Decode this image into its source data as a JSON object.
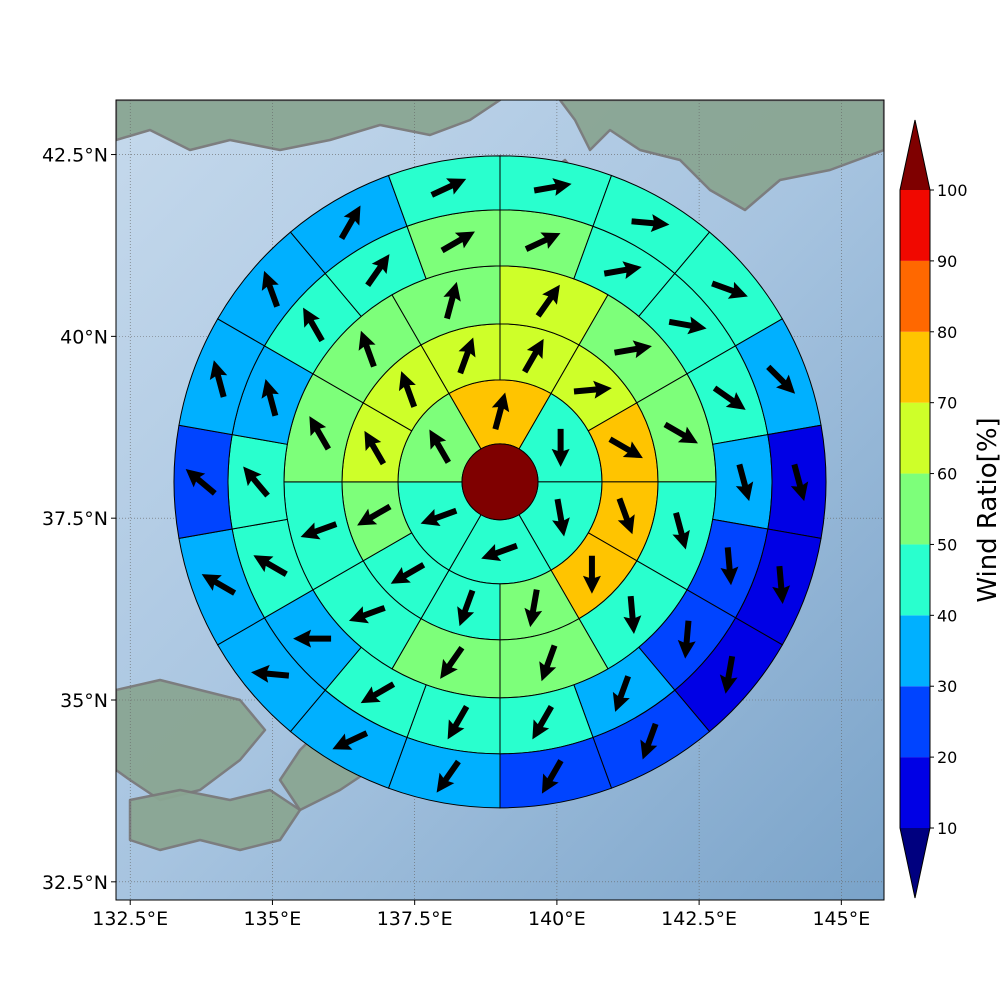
{
  "chart_data": {
    "type": "polar-sector-map",
    "map": {
      "lon_range": [
        132.25,
        145.75
      ],
      "lat_range": [
        32.25,
        43.25
      ],
      "center": {
        "lon": 139.0,
        "lat": 38.0
      },
      "x_ticks": [
        {
          "value": 132.5,
          "label": "132.5°E"
        },
        {
          "value": 135.0,
          "label": "135°E"
        },
        {
          "value": 137.5,
          "label": "137.5°E"
        },
        {
          "value": 140.0,
          "label": "140°E"
        },
        {
          "value": 142.5,
          "label": "142.5°E"
        },
        {
          "value": 145.0,
          "label": "145°E"
        }
      ],
      "y_ticks": [
        {
          "value": 32.5,
          "label": "32.5°N"
        },
        {
          "value": 35.0,
          "label": "35°N"
        },
        {
          "value": 37.5,
          "label": "37.5°N"
        },
        {
          "value": 40.0,
          "label": "40°N"
        },
        {
          "value": 42.5,
          "label": "42.5°N"
        }
      ],
      "grid": true,
      "grid_style": "dotted",
      "ocean_color": "#9fbfdc",
      "land_color": "#8aa693",
      "coastline_color": "#7a7a7a"
    },
    "rings": [
      {
        "ring": 1,
        "center_value": 100
      },
      {
        "ring": 2,
        "sectors": [
          {
            "dir": 60,
            "value": 45,
            "arrow": 180
          },
          {
            "dir": 120,
            "value": 40,
            "arrow": 170
          },
          {
            "dir": 180,
            "value": 45,
            "arrow": 250
          },
          {
            "dir": 240,
            "value": 45,
            "arrow": 250
          },
          {
            "dir": 300,
            "value": 55,
            "arrow": 330
          },
          {
            "dir": 0,
            "value": 75,
            "arrow": 15
          }
        ]
      },
      {
        "ring": 3,
        "sectors": [
          {
            "dir": 15,
            "value": 65,
            "arrow": 30
          },
          {
            "dir": 45,
            "value": 65,
            "arrow": 85
          },
          {
            "dir": 75,
            "value": 75,
            "arrow": 120
          },
          {
            "dir": 105,
            "value": 75,
            "arrow": 160
          },
          {
            "dir": 135,
            "value": 75,
            "arrow": 180
          },
          {
            "dir": 165,
            "value": 55,
            "arrow": 190
          },
          {
            "dir": 195,
            "value": 45,
            "arrow": 200
          },
          {
            "dir": 225,
            "value": 45,
            "arrow": 240
          },
          {
            "dir": 255,
            "value": 55,
            "arrow": 240
          },
          {
            "dir": 285,
            "value": 65,
            "arrow": 330
          },
          {
            "dir": 315,
            "value": 65,
            "arrow": 340
          },
          {
            "dir": 345,
            "value": 65,
            "arrow": 20
          }
        ]
      },
      {
        "ring": 4,
        "sectors": [
          {
            "dir": 15,
            "value": 65,
            "arrow": 35
          },
          {
            "dir": 45,
            "value": 55,
            "arrow": 80
          },
          {
            "dir": 75,
            "value": 55,
            "arrow": 120
          },
          {
            "dir": 105,
            "value": 45,
            "arrow": 165
          },
          {
            "dir": 135,
            "value": 45,
            "arrow": 175
          },
          {
            "dir": 165,
            "value": 55,
            "arrow": 200
          },
          {
            "dir": 195,
            "value": 55,
            "arrow": 215
          },
          {
            "dir": 225,
            "value": 45,
            "arrow": 250
          },
          {
            "dir": 255,
            "value": 45,
            "arrow": 250
          },
          {
            "dir": 285,
            "value": 55,
            "arrow": 330
          },
          {
            "dir": 315,
            "value": 55,
            "arrow": 340
          },
          {
            "dir": 345,
            "value": 55,
            "arrow": 15
          }
        ]
      },
      {
        "ring": 5,
        "sectors": [
          {
            "dir": 10,
            "value": 55,
            "arrow": 65
          },
          {
            "dir": 30,
            "value": 45,
            "arrow": 80
          },
          {
            "dir": 50,
            "value": 45,
            "arrow": 100
          },
          {
            "dir": 70,
            "value": 45,
            "arrow": 125
          },
          {
            "dir": 90,
            "value": 35,
            "arrow": 165
          },
          {
            "dir": 110,
            "value": 25,
            "arrow": 175
          },
          {
            "dir": 130,
            "value": 25,
            "arrow": 185
          },
          {
            "dir": 150,
            "value": 35,
            "arrow": 200
          },
          {
            "dir": 170,
            "value": 45,
            "arrow": 210
          },
          {
            "dir": 190,
            "value": 45,
            "arrow": 210
          },
          {
            "dir": 210,
            "value": 45,
            "arrow": 240
          },
          {
            "dir": 230,
            "value": 35,
            "arrow": 270
          },
          {
            "dir": 250,
            "value": 45,
            "arrow": 300
          },
          {
            "dir": 270,
            "value": 45,
            "arrow": 320
          },
          {
            "dir": 290,
            "value": 35,
            "arrow": 345
          },
          {
            "dir": 310,
            "value": 45,
            "arrow": 330
          },
          {
            "dir": 330,
            "value": 45,
            "arrow": 35
          },
          {
            "dir": 350,
            "value": 55,
            "arrow": 60
          }
        ]
      },
      {
        "ring": 6,
        "sectors": [
          {
            "dir": 10,
            "value": 45,
            "arrow": 80
          },
          {
            "dir": 30,
            "value": 45,
            "arrow": 95
          },
          {
            "dir": 50,
            "value": 45,
            "arrow": 110
          },
          {
            "dir": 70,
            "value": 35,
            "arrow": 135
          },
          {
            "dir": 90,
            "value": 15,
            "arrow": 165
          },
          {
            "dir": 110,
            "value": 15,
            "arrow": 175
          },
          {
            "dir": 130,
            "value": 15,
            "arrow": 190
          },
          {
            "dir": 150,
            "value": 25,
            "arrow": 200
          },
          {
            "dir": 170,
            "value": 25,
            "arrow": 210
          },
          {
            "dir": 190,
            "value": 35,
            "arrow": 215
          },
          {
            "dir": 210,
            "value": 35,
            "arrow": 245
          },
          {
            "dir": 230,
            "value": 35,
            "arrow": 275
          },
          {
            "dir": 250,
            "value": 35,
            "arrow": 300
          },
          {
            "dir": 270,
            "value": 25,
            "arrow": 310
          },
          {
            "dir": 290,
            "value": 35,
            "arrow": 345
          },
          {
            "dir": 310,
            "value": 35,
            "arrow": 340
          },
          {
            "dir": 330,
            "value": 35,
            "arrow": 30
          },
          {
            "dir": 350,
            "value": 45,
            "arrow": 65
          }
        ]
      }
    ],
    "colorbar": {
      "label": "Wind Ratio[%]",
      "ticks": [
        10,
        20,
        30,
        40,
        50,
        60,
        70,
        80,
        90,
        100
      ],
      "levels": [
        {
          "from": 0,
          "to": 10,
          "color": "#00007f",
          "extend": "min"
        },
        {
          "from": 10,
          "to": 20,
          "color": "#0000e5"
        },
        {
          "from": 20,
          "to": 30,
          "color": "#0044ff"
        },
        {
          "from": 30,
          "to": 40,
          "color": "#00b0ff"
        },
        {
          "from": 40,
          "to": 50,
          "color": "#29ffce"
        },
        {
          "from": 50,
          "to": 60,
          "color": "#7dff7a"
        },
        {
          "from": 60,
          "to": 70,
          "color": "#ceff29"
        },
        {
          "from": 70,
          "to": 80,
          "color": "#ffc400"
        },
        {
          "from": 80,
          "to": 90,
          "color": "#ff6800"
        },
        {
          "from": 90,
          "to": 100,
          "color": "#f10800"
        },
        {
          "from": 100,
          "to": 110,
          "color": "#7f0000",
          "extend": "max"
        }
      ]
    }
  }
}
